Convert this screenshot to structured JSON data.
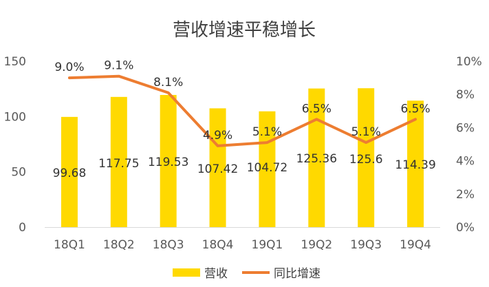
{
  "chart_data": {
    "type": "bar",
    "title": "营收增速平稳增长",
    "categories": [
      "18Q1",
      "18Q2",
      "18Q3",
      "18Q4",
      "19Q1",
      "19Q2",
      "19Q3",
      "19Q4"
    ],
    "series": [
      {
        "name": "营收",
        "type": "bar",
        "axis": "left",
        "color": "#FFD900",
        "values": [
          99.68,
          117.75,
          119.53,
          107.42,
          104.72,
          125.36,
          125.6,
          114.39
        ],
        "labels": [
          "99.68",
          "117.75",
          "119.53",
          "107.42",
          "104.72",
          "125.36",
          "125.6",
          "114.39"
        ]
      },
      {
        "name": "同比增速",
        "type": "line",
        "axis": "right",
        "color": "#ED7D31",
        "values": [
          9.0,
          9.1,
          8.1,
          4.9,
          5.1,
          6.5,
          5.1,
          6.5
        ],
        "labels": [
          "9.0%",
          "9.1%",
          "8.1%",
          "4.9%",
          "5.1%",
          "6.5%",
          "5.1%",
          "6.5%"
        ]
      }
    ],
    "y_left": {
      "min": 0,
      "max": 150,
      "ticks": [
        0,
        50,
        100,
        150
      ],
      "tick_labels": [
        "0",
        "50",
        "100",
        "150"
      ]
    },
    "y_right": {
      "min": 0,
      "max": 10,
      "ticks": [
        0,
        2,
        4,
        6,
        8,
        10
      ],
      "tick_labels": [
        "0%",
        "2%",
        "4%",
        "6%",
        "8%",
        "10%"
      ]
    },
    "grid": false,
    "legend": {
      "position": "bottom",
      "items": [
        "营收",
        "同比增速"
      ]
    }
  }
}
